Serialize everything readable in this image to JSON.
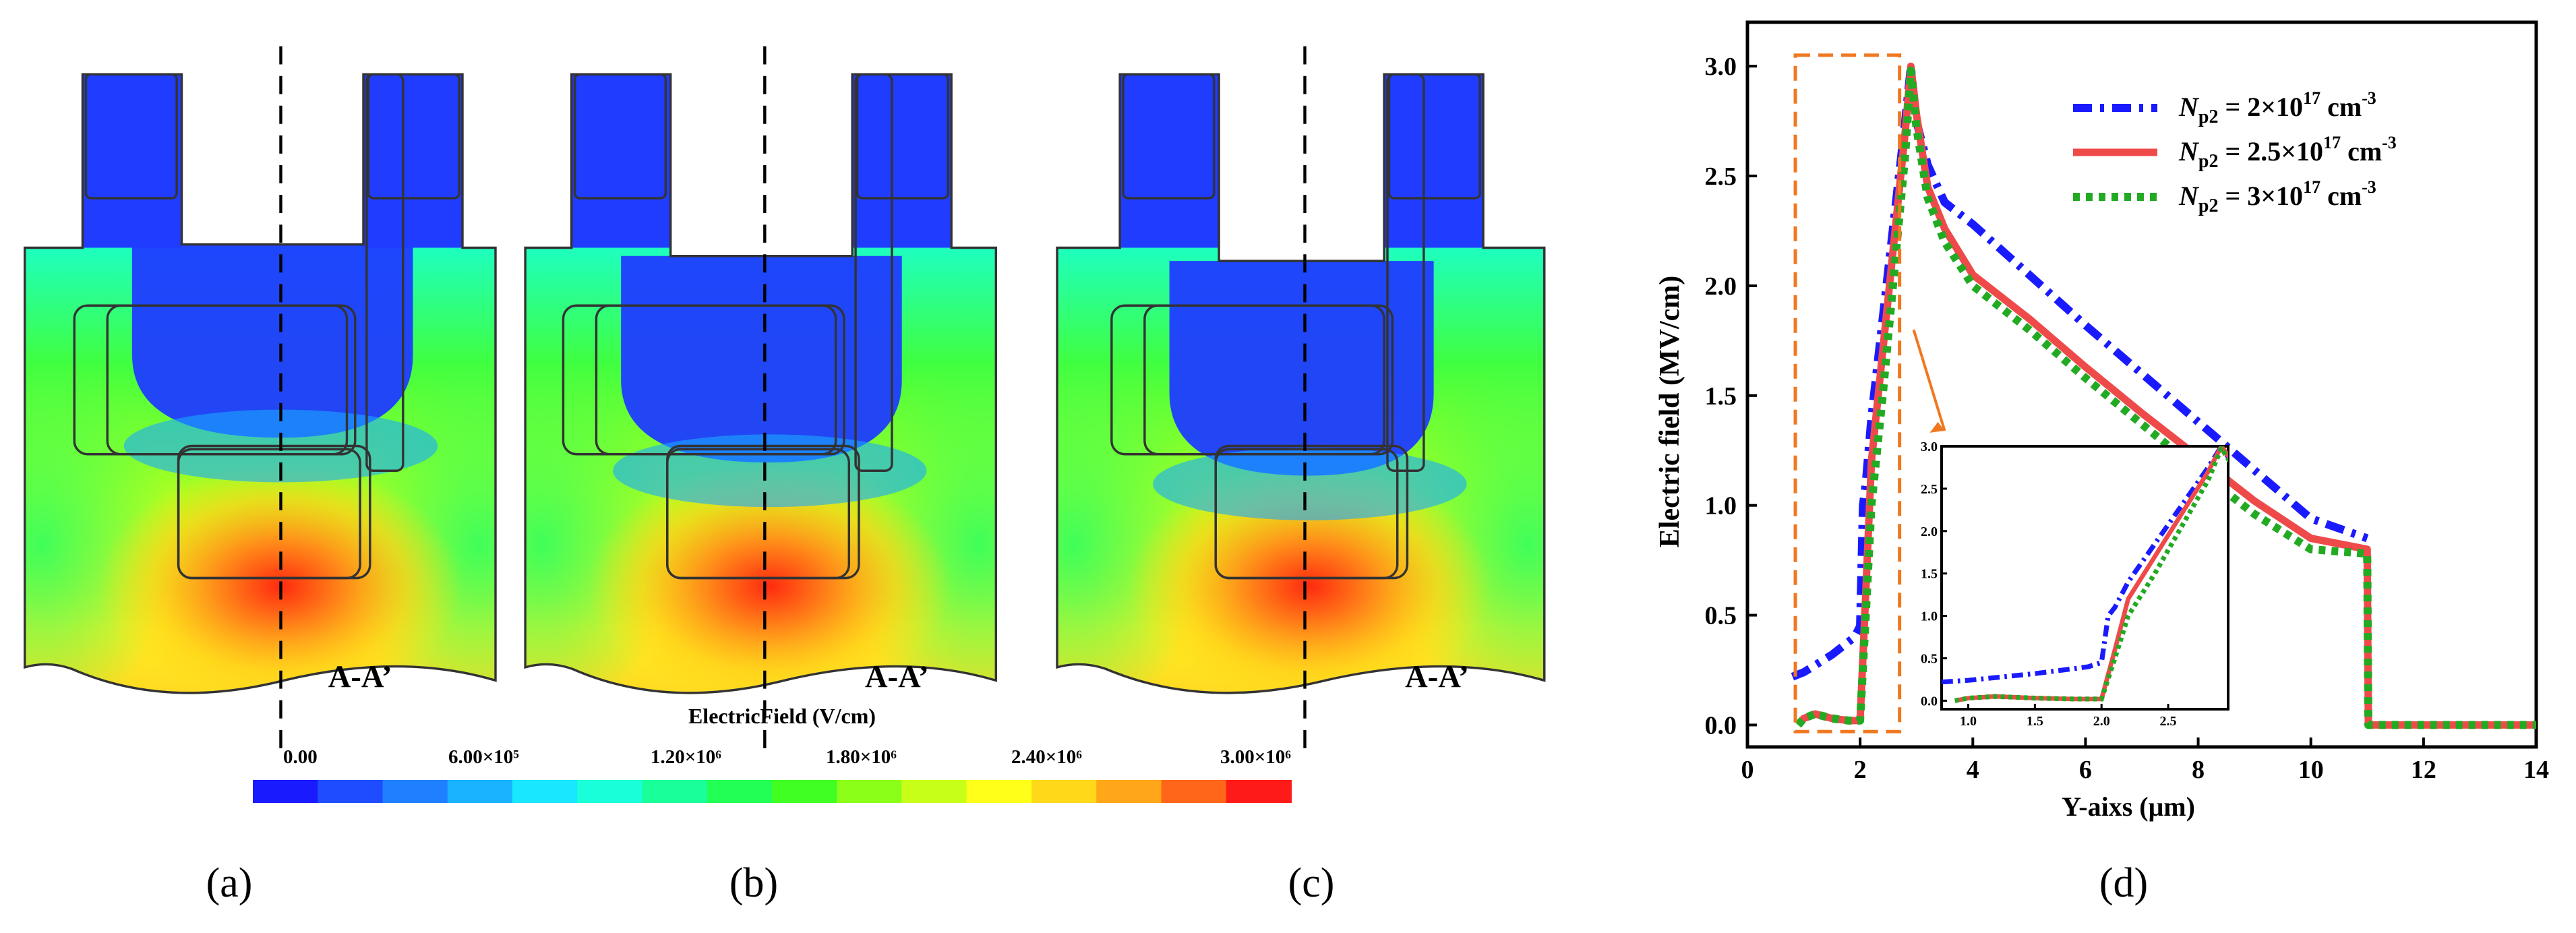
{
  "colorbar": {
    "title": "ElectricField (V/cm)",
    "ticks": [
      "0.00",
      "6.00×10⁵",
      "1.20×10⁶",
      "1.80×10⁶",
      "2.40×10⁶",
      "3.00×10⁶"
    ],
    "colors": [
      "#1a1aff",
      "#1f4cff",
      "#1f80ff",
      "#19b3ff",
      "#19e6ff",
      "#19ffd9",
      "#19ff99",
      "#22ff55",
      "#40ff22",
      "#8cff19",
      "#c8ff19",
      "#ffff19",
      "#ffd919",
      "#ffa619",
      "#ff6619",
      "#ff1a1a"
    ]
  },
  "maps": [
    {
      "panel_label": "(a)",
      "cut_label": "A-A’"
    },
    {
      "panel_label": "(b)",
      "cut_label": "A-A’"
    },
    {
      "panel_label": "(c)",
      "cut_label": "A-A’"
    }
  ],
  "chart_data": {
    "panel_label": "(d)",
    "type": "line",
    "xlabel": "Y-aixs (μm)",
    "ylabel": "Electric field (MV/cm)",
    "xlim": [
      0,
      14
    ],
    "ylim": [
      -0.1,
      3.2
    ],
    "xticks": [
      "0",
      "2",
      "4",
      "6",
      "8",
      "10",
      "12",
      "14"
    ],
    "yticks": [
      "0.0",
      "0.5",
      "1.0",
      "1.5",
      "2.0",
      "2.5",
      "3.0"
    ],
    "series": [
      {
        "name": "N_p2 = 2×10^17 cm^-3",
        "legend_main": "N",
        "legend_sub": "p2",
        "legend_value": " = 2×10",
        "legend_exp": "17",
        "legend_unit": " cm",
        "legend_unit_exp": "-3",
        "color": "#1a1aff",
        "style": "dashdot",
        "x": [
          0.8,
          1.0,
          1.5,
          1.9,
          2.0,
          2.05,
          2.1,
          2.2,
          2.4,
          2.6,
          2.8,
          2.9,
          3.0,
          3.2,
          3.5,
          4.0,
          5.0,
          6.0,
          7.0,
          8.0,
          9.0,
          10.0,
          11.0
        ],
        "y": [
          0.22,
          0.24,
          0.32,
          0.4,
          0.45,
          1.0,
          1.1,
          1.4,
          1.85,
          2.3,
          2.75,
          3.0,
          2.75,
          2.55,
          2.38,
          2.28,
          2.05,
          1.82,
          1.6,
          1.38,
          1.16,
          0.94,
          0.85
        ]
      },
      {
        "name": "N_p2 = 2.5×10^17 cm^-3",
        "legend_main": "N",
        "legend_sub": "p2",
        "legend_value": " = 2.5×10",
        "legend_exp": "17",
        "legend_unit": " cm",
        "legend_unit_exp": "-3",
        "color": "#ef4a4a",
        "style": "solid",
        "x": [
          0.9,
          1.0,
          1.2,
          1.5,
          1.8,
          2.0,
          2.1,
          2.2,
          2.4,
          2.6,
          2.8,
          2.9,
          3.0,
          3.2,
          3.5,
          4.0,
          5.0,
          6.0,
          7.0,
          8.0,
          9.0,
          10.0,
          11.0,
          11.02,
          14.0
        ],
        "y": [
          0.0,
          0.03,
          0.05,
          0.03,
          0.02,
          0.02,
          0.6,
          1.2,
          1.7,
          2.2,
          2.7,
          3.0,
          2.78,
          2.45,
          2.26,
          2.05,
          1.85,
          1.63,
          1.42,
          1.22,
          1.02,
          0.85,
          0.8,
          0.0,
          0.0
        ]
      },
      {
        "name": "N_p2 = 3×10^17 cm^-3",
        "legend_main": "N",
        "legend_sub": "p2",
        "legend_value": " = 3×10",
        "legend_exp": "17",
        "legend_unit": " cm",
        "legend_unit_exp": "-3",
        "color": "#22aa22",
        "style": "dotted",
        "x": [
          0.9,
          1.0,
          1.2,
          1.5,
          1.8,
          2.0,
          2.1,
          2.2,
          2.4,
          2.6,
          2.8,
          2.9,
          3.0,
          3.2,
          3.5,
          4.0,
          5.0,
          6.0,
          7.0,
          8.0,
          9.0,
          10.0,
          11.0,
          11.02,
          14.0
        ],
        "y": [
          0.0,
          0.03,
          0.05,
          0.03,
          0.02,
          0.02,
          0.5,
          1.0,
          1.5,
          2.05,
          2.6,
          2.98,
          2.72,
          2.4,
          2.2,
          2.0,
          1.8,
          1.58,
          1.37,
          1.16,
          0.96,
          0.8,
          0.78,
          0.0,
          0.0
        ]
      }
    ],
    "inset": {
      "xlim": [
        0.8,
        2.95
      ],
      "ylim": [
        -0.1,
        3.0
      ],
      "xticks": [
        "1.0",
        "1.5",
        "2.0",
        "2.5"
      ],
      "yticks": [
        "0.0",
        "0.5",
        "1.0",
        "1.5",
        "2.0",
        "2.5",
        "3.0"
      ]
    }
  }
}
